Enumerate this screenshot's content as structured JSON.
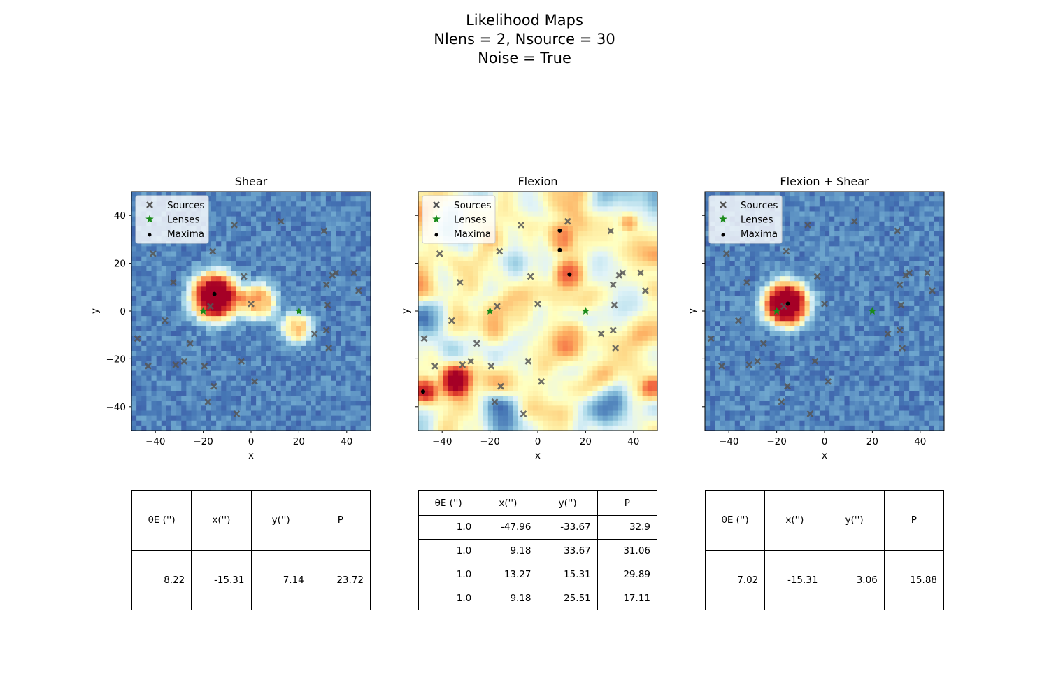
{
  "title_lines": [
    "Likelihood Maps",
    "Nlens = 2, Nsource = 30",
    "Noise = True"
  ],
  "chart_data": {
    "type": "heatmap",
    "colormap": "RdYlBu_r",
    "grid_resolution": 48,
    "xlim": [
      -50,
      50
    ],
    "ylim": [
      -50,
      50
    ],
    "xlabel": "x",
    "ylabel": "y",
    "xticks": [
      -40,
      -20,
      0,
      20,
      40
    ],
    "yticks": [
      -40,
      -20,
      0,
      20,
      40
    ],
    "legend": {
      "placement": "upper-left",
      "entries": [
        {
          "label": "Sources",
          "marker": "x",
          "color": "#555555"
        },
        {
          "label": "Lenses",
          "marker": "star",
          "color": "#1a8a1a"
        },
        {
          "label": "Maxima",
          "marker": "dot",
          "color": "#000000"
        }
      ]
    },
    "sources": [
      [
        -47.5,
        -11.5
      ],
      [
        -43,
        -23
      ],
      [
        -41,
        24
      ],
      [
        -36,
        -4
      ],
      [
        -32.5,
        12
      ],
      [
        -31.5,
        -22.5
      ],
      [
        -28,
        -21
      ],
      [
        -25.5,
        -13.5
      ],
      [
        -19.5,
        -23
      ],
      [
        -18,
        -38
      ],
      [
        -17,
        2
      ],
      [
        -16,
        25
      ],
      [
        -15.5,
        -31.5
      ],
      [
        -7,
        36
      ],
      [
        -6,
        -43
      ],
      [
        -4,
        -21
      ],
      [
        -3,
        14.5
      ],
      [
        0,
        3
      ],
      [
        1.5,
        -29.5
      ],
      [
        12.5,
        37.5
      ],
      [
        26.5,
        -9.5
      ],
      [
        30.5,
        33.5
      ],
      [
        31.5,
        -8
      ],
      [
        31.5,
        11
      ],
      [
        32,
        2.5
      ],
      [
        32.5,
        -15.5
      ],
      [
        34,
        15
      ],
      [
        35.5,
        16
      ],
      [
        43,
        16
      ],
      [
        45,
        8.5
      ]
    ],
    "lenses": [
      [
        -20,
        0
      ],
      [
        20,
        0
      ]
    ],
    "panels": [
      {
        "title": "Shear",
        "background_level": 0.13,
        "noise_amplitude": 0.06,
        "blobs": [
          {
            "x": -15,
            "y": 6,
            "sigma": 8.5,
            "amplitude": 1.0
          },
          {
            "x": 3,
            "y": 4,
            "sigma": 6.5,
            "amplitude": 0.55
          },
          {
            "x": 19,
            "y": -7,
            "sigma": 5.5,
            "amplitude": 0.5
          }
        ],
        "maxima": [
          [
            -15.31,
            7.14
          ]
        ],
        "table": {
          "headers": [
            "θE ('')",
            "x('')",
            "y('')",
            "P"
          ],
          "rows": [
            [
              "8.22",
              "-15.31",
              "7.14",
              "23.72"
            ]
          ]
        }
      },
      {
        "title": "Flexion",
        "background_level": 0.5,
        "noise_amplitude": 0.3,
        "blobs": [
          {
            "x": -34,
            "y": -29,
            "sigma": 5.5,
            "amplitude": 0.5
          },
          {
            "x": -47,
            "y": -33,
            "sigma": 4,
            "amplitude": 0.35
          },
          {
            "x": 9,
            "y": 31,
            "sigma": 5,
            "amplitude": 0.3
          },
          {
            "x": 13,
            "y": 15,
            "sigma": 5,
            "amplitude": 0.3
          },
          {
            "x": 13,
            "y": -12,
            "sigma": 6,
            "amplitude": 0.25
          },
          {
            "x": -8,
            "y": 3,
            "sigma": 6,
            "amplitude": 0.2
          },
          {
            "x": 38,
            "y": 37,
            "sigma": 3,
            "amplitude": 0.25
          },
          {
            "x": 48,
            "y": -33,
            "sigma": 4,
            "amplitude": 0.3
          },
          {
            "x": -45,
            "y": -2,
            "sigma": 6,
            "amplitude": -0.3
          },
          {
            "x": -38,
            "y": 38,
            "sigma": 6,
            "amplitude": -0.25
          },
          {
            "x": -15,
            "y": -44,
            "sigma": 7,
            "amplitude": -0.3
          },
          {
            "x": 30,
            "y": -40,
            "sigma": 7,
            "amplitude": -0.3
          },
          {
            "x": 38,
            "y": 5,
            "sigma": 6,
            "amplitude": -0.2
          }
        ],
        "maxima": [
          [
            -47.96,
            -33.67
          ],
          [
            9.18,
            33.67
          ],
          [
            13.27,
            15.31
          ],
          [
            9.18,
            25.51
          ]
        ],
        "table": {
          "headers": [
            "θE ('')",
            "x('')",
            "y('')",
            "P"
          ],
          "rows": [
            [
              "1.0",
              "-47.96",
              "-33.67",
              "32.9"
            ],
            [
              "1.0",
              "9.18",
              "33.67",
              "31.06"
            ],
            [
              "1.0",
              "13.27",
              "15.31",
              "29.89"
            ],
            [
              "1.0",
              "9.18",
              "25.51",
              "17.11"
            ]
          ]
        }
      },
      {
        "title": "Flexion + Shear",
        "background_level": 0.13,
        "noise_amplitude": 0.06,
        "blobs": [
          {
            "x": -16,
            "y": 3,
            "sigma": 8,
            "amplitude": 1.0
          }
        ],
        "maxima": [
          [
            -15.31,
            3.06
          ]
        ],
        "table": {
          "headers": [
            "θE ('')",
            "x('')",
            "y('')",
            "P"
          ],
          "rows": [
            [
              "7.02",
              "-15.31",
              "3.06",
              "15.88"
            ]
          ]
        }
      }
    ]
  }
}
